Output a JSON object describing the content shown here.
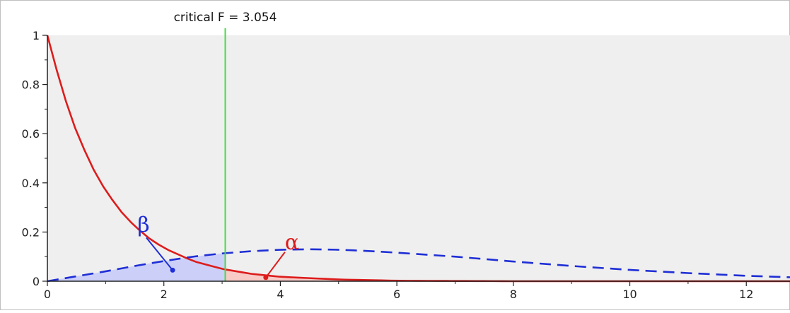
{
  "chart_data": {
    "type": "line",
    "title": "",
    "xlabel": "",
    "ylabel": "",
    "xlim": [
      0,
      12.75
    ],
    "ylim": [
      0,
      1
    ],
    "x_ticks": [
      0,
      2,
      4,
      6,
      8,
      10,
      12
    ],
    "x_tick_labels": [
      "0",
      "2",
      "4",
      "6",
      "8",
      "10",
      "12"
    ],
    "y_ticks": [
      0,
      0.2,
      0.4,
      0.6,
      0.8,
      1
    ],
    "y_tick_labels": [
      "0",
      "0.2",
      "0.4",
      "0.6",
      "0.8",
      "1"
    ],
    "grid": false,
    "critical_value": 3.054,
    "critical_label": "critical F = 3.054",
    "series": [
      {
        "color": "#dd1c1c",
        "style": "solid",
        "x": [
          0,
          0.25,
          0.5,
          0.75,
          1,
          1.25,
          1.5,
          1.75,
          2,
          2.5,
          3,
          3.5,
          4,
          5,
          6,
          7,
          8,
          10,
          12.75
        ],
        "y": [
          1,
          0.779,
          0.607,
          0.472,
          0.368,
          0.287,
          0.223,
          0.174,
          0.135,
          0.082,
          0.05,
          0.03,
          0.018,
          0.007,
          0.002,
          0.001,
          0,
          0,
          0
        ]
      },
      {
        "color": "#1f2fd6",
        "style": "dashed",
        "x": [
          0,
          0.5,
          1,
          1.5,
          2,
          2.5,
          3,
          3.5,
          4,
          4.5,
          5,
          5.5,
          6,
          7,
          8,
          9,
          10,
          11,
          12,
          12.75
        ],
        "y": [
          0,
          0.02,
          0.04,
          0.062,
          0.082,
          0.1,
          0.113,
          0.122,
          0.128,
          0.13,
          0.128,
          0.123,
          0.116,
          0.1,
          0.08,
          0.062,
          0.046,
          0.033,
          0.022,
          0.016
        ]
      }
    ],
    "shaded_regions": [
      {
        "label": "β",
        "color": "#1f2fd6",
        "under_series": 1,
        "x_range": [
          0,
          3.054
        ],
        "label_x": 1.65,
        "label_y": 0.2,
        "point_x": 2.15,
        "point_y": 0.045
      },
      {
        "label": "α",
        "color": "#dd1c1c",
        "under_series": 0,
        "x_range": [
          3.054,
          12.75
        ],
        "label_x": 4.2,
        "label_y": 0.13,
        "point_x": 3.75,
        "point_y": 0.015
      }
    ],
    "colors": {
      "plot_background": "#efefef",
      "frame": "#bfbfbf",
      "axis": "#222222",
      "critical_line": "#44dd44",
      "beta_fill": "#c8ccf8",
      "alpha_fill": "#f8c6c2"
    }
  }
}
